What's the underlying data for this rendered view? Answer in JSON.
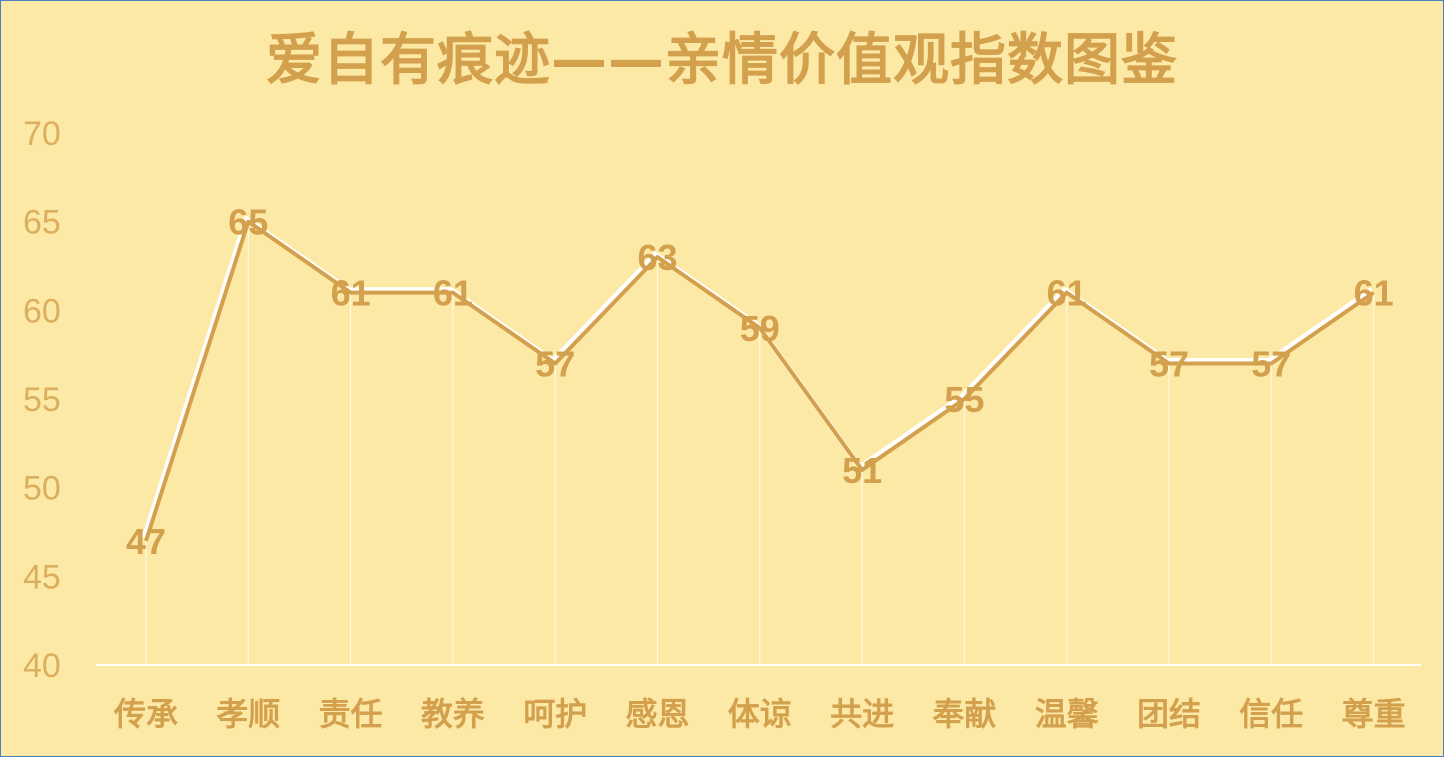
{
  "chart_data": {
    "type": "line",
    "title": "爱自有痕迹——亲情价值观指数图鉴",
    "xlabel": "",
    "ylabel": "",
    "categories": [
      "传承",
      "孝顺",
      "责任",
      "教养",
      "呵护",
      "感恩",
      "体谅",
      "共进",
      "奉献",
      "温馨",
      "团结",
      "信任",
      "尊重"
    ],
    "series": [
      {
        "values": [
          47,
          65,
          61,
          61,
          57,
          63,
          59,
          51,
          55,
          61,
          57,
          57,
          61
        ]
      }
    ],
    "ylim": [
      40,
      70
    ],
    "yticks": [
      40,
      45,
      50,
      55,
      60,
      65,
      70
    ],
    "grid": false,
    "legend": "none",
    "data_labels": true,
    "colors": {
      "background": "#fde9a6",
      "line": "#d3a04e",
      "line_highlight": "#ffffff",
      "text": "#d3a04e",
      "frame": "#4a7fc8"
    }
  }
}
